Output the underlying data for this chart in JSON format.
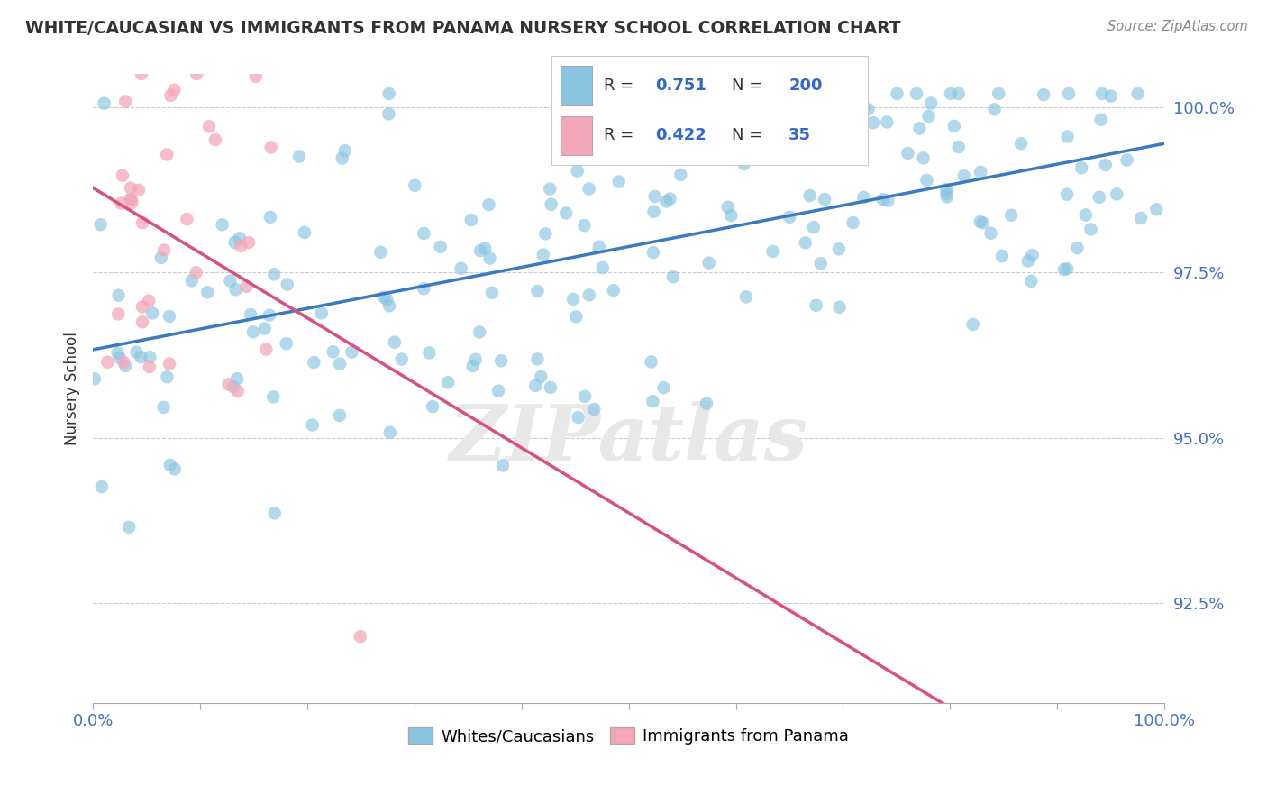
{
  "title": "WHITE/CAUCASIAN VS IMMIGRANTS FROM PANAMA NURSERY SCHOOL CORRELATION CHART",
  "source": "Source: ZipAtlas.com",
  "ylabel": "Nursery School",
  "xlim": [
    0,
    1.0
  ],
  "ylim": [
    0.91,
    1.005
  ],
  "blue_R": 0.751,
  "blue_N": 200,
  "pink_R": 0.422,
  "pink_N": 35,
  "blue_color": "#89c4e1",
  "pink_color": "#f4a7b9",
  "blue_line_color": "#3a7abf",
  "pink_line_color": "#d94f7e",
  "yticks": [
    0.925,
    0.95,
    0.975,
    1.0
  ],
  "ytick_labels": [
    "92.5%",
    "95.0%",
    "97.5%",
    "100.0%"
  ],
  "background_color": "#ffffff",
  "grid_color": "#cccccc",
  "title_color": "#333333",
  "watermark_text": "ZIPatlas",
  "watermark_color": "#e8e8e8",
  "tick_color": "#4472c4",
  "source_color": "#888888"
}
